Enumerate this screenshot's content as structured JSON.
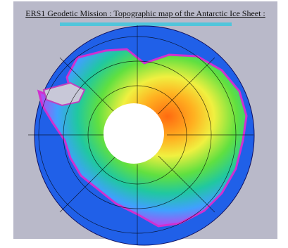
{
  "header": {
    "title": "ERS1 Geodetic Mission : Topographic map of the Antarctic Ice Sheet :"
  }
}
